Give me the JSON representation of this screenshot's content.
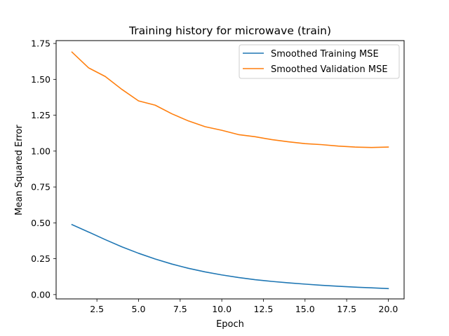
{
  "chart_data": {
    "type": "line",
    "title": "Training history for microwave (train)",
    "xlabel": "Epoch",
    "ylabel": "Mean Squared Error",
    "xlim": [
      0.05,
      20.95
    ],
    "ylim": [
      -0.03,
      1.77
    ],
    "xticks": [
      2.5,
      5.0,
      7.5,
      10.0,
      12.5,
      15.0,
      17.5,
      20.0
    ],
    "xtick_labels": [
      "2.5",
      "5.0",
      "7.5",
      "10.0",
      "12.5",
      "15.0",
      "17.5",
      "20.0"
    ],
    "yticks": [
      0.0,
      0.25,
      0.5,
      0.75,
      1.0,
      1.25,
      1.5,
      1.75
    ],
    "ytick_labels": [
      "0.00",
      "0.25",
      "0.50",
      "0.75",
      "1.00",
      "1.25",
      "1.50",
      "1.75"
    ],
    "grid": false,
    "legend_position": "top-right",
    "x": [
      1,
      2,
      3,
      4,
      5,
      6,
      7,
      8,
      9,
      10,
      11,
      12,
      13,
      14,
      15,
      16,
      17,
      18,
      19,
      20
    ],
    "series": [
      {
        "name": "Smoothed Training MSE",
        "color": "#1f77b4",
        "values": [
          0.488,
          0.436,
          0.383,
          0.333,
          0.288,
          0.248,
          0.213,
          0.183,
          0.158,
          0.137,
          0.119,
          0.104,
          0.092,
          0.082,
          0.073,
          0.065,
          0.058,
          0.052,
          0.047,
          0.042
        ]
      },
      {
        "name": "Smoothed Validation MSE",
        "color": "#ff7f0e",
        "values": [
          1.69,
          1.58,
          1.52,
          1.43,
          1.35,
          1.32,
          1.26,
          1.21,
          1.17,
          1.145,
          1.115,
          1.1,
          1.08,
          1.065,
          1.052,
          1.045,
          1.035,
          1.028,
          1.025,
          1.028
        ]
      }
    ]
  }
}
